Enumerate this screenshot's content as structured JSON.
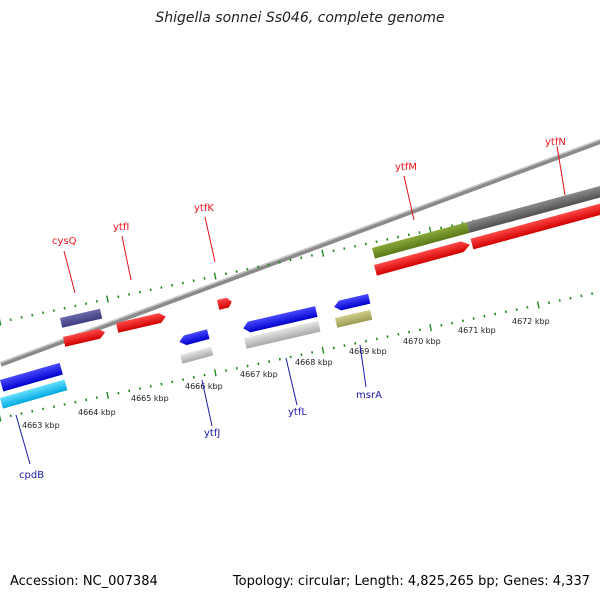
{
  "title": "Shigella sonnei Ss046, complete genome",
  "accession": "Accession: NC_007384",
  "stats": "Topology: circular; Length: 4,825,265 bp; Genes: 4,337",
  "colors": {
    "label_forward": "#e8131b",
    "label_reverse": "#1a1aa8",
    "tick": "#1e8a1e",
    "backbone": "#8a8a8a"
  },
  "kbp_labels": [
    "4663 kbp",
    "4664 kbp",
    "4665 kbp",
    "4666 kbp",
    "4667 kbp",
    "4668 kbp",
    "4669 kbp",
    "4670 kbp",
    "4671 kbp",
    "4672 kbp"
  ],
  "genes_top": [
    {
      "name": "cysQ",
      "color": "#e8131b"
    },
    {
      "name": "ytfI",
      "color": "#e8131b"
    },
    {
      "name": "ytfK",
      "color": "#e8131b"
    },
    {
      "name": "ytfM",
      "color": "#e8131b"
    },
    {
      "name": "ytfN",
      "color": "#e8131b"
    }
  ],
  "genes_bottom": [
    {
      "name": "cpdB",
      "color": "#1a1aa8"
    },
    {
      "name": "ytfJ",
      "color": "#1a1aa8"
    },
    {
      "name": "ytfL",
      "color": "#1a1aa8"
    },
    {
      "name": "msrA",
      "color": "#1a1aa8"
    }
  ]
}
